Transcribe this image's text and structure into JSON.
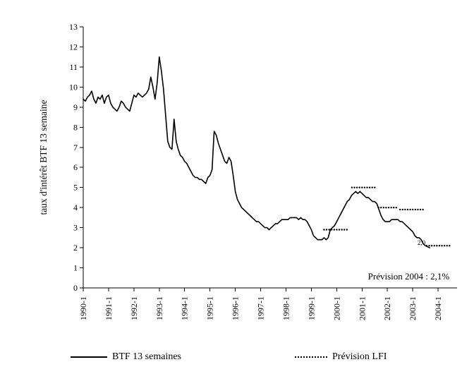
{
  "chart_data": {
    "type": "line",
    "title": "",
    "xlabel": "",
    "ylabel": "taux d'intérêt BTF 13 semaine",
    "ylim": [
      0,
      13
    ],
    "ytick_step": 1,
    "x_range": [
      1990,
      2004.75
    ],
    "x_tick_labels": [
      "1990-1",
      "1991-1",
      "1992-1",
      "1993-1",
      "1994-1",
      "1995-1",
      "1996-1",
      "1997-1",
      "1998-1",
      "1999-1",
      "2000-1",
      "2001-1",
      "2002-1",
      "2003-1",
      "2004-1"
    ],
    "grid": false,
    "legend_position": "bottom",
    "series": [
      {
        "name": "BTF 13 semaines",
        "style": "solid",
        "x_start_year": 1990,
        "x_step_months": 1,
        "values": [
          9.4,
          9.3,
          9.5,
          9.6,
          9.8,
          9.4,
          9.2,
          9.5,
          9.4,
          9.6,
          9.2,
          9.5,
          9.6,
          9.2,
          9.0,
          8.9,
          8.8,
          9.0,
          9.3,
          9.2,
          9.0,
          8.9,
          8.8,
          9.2,
          9.6,
          9.5,
          9.7,
          9.6,
          9.5,
          9.6,
          9.7,
          9.9,
          10.5,
          10.0,
          9.4,
          10.2,
          11.5,
          10.8,
          9.9,
          8.6,
          7.3,
          7.0,
          6.9,
          8.4,
          7.3,
          6.9,
          6.6,
          6.5,
          6.3,
          6.2,
          6.0,
          5.8,
          5.6,
          5.5,
          5.5,
          5.4,
          5.4,
          5.3,
          5.2,
          5.5,
          5.6,
          5.9,
          7.8,
          7.6,
          7.2,
          6.9,
          6.6,
          6.3,
          6.2,
          6.5,
          6.3,
          5.6,
          4.8,
          4.4,
          4.2,
          4.0,
          3.9,
          3.8,
          3.7,
          3.6,
          3.5,
          3.4,
          3.3,
          3.3,
          3.2,
          3.1,
          3.0,
          3.0,
          2.9,
          3.0,
          3.1,
          3.2,
          3.2,
          3.3,
          3.4,
          3.4,
          3.4,
          3.4,
          3.5,
          3.5,
          3.5,
          3.5,
          3.4,
          3.5,
          3.4,
          3.4,
          3.3,
          3.1,
          2.9,
          2.6,
          2.5,
          2.4,
          2.4,
          2.4,
          2.5,
          2.4,
          2.5,
          2.9,
          3.0,
          3.1,
          3.3,
          3.5,
          3.7,
          3.9,
          4.1,
          4.3,
          4.4,
          4.6,
          4.7,
          4.8,
          4.7,
          4.8,
          4.7,
          4.6,
          4.5,
          4.5,
          4.4,
          4.3,
          4.3,
          4.2,
          3.9,
          3.6,
          3.4,
          3.3,
          3.3,
          3.3,
          3.4,
          3.4,
          3.4,
          3.4,
          3.3,
          3.3,
          3.2,
          3.1,
          3.0,
          2.9,
          2.8,
          2.6,
          2.5,
          2.5,
          2.4,
          2.2,
          2.1,
          2.05,
          2.0
        ]
      }
    ],
    "forecast_series": {
      "name": "Prévision LFI",
      "style": "dotted",
      "segments": [
        {
          "label": "2000",
          "value": 2.9,
          "x_start": 1999.5,
          "x_end": 2000.5
        },
        {
          "label": "2001",
          "value": 5.0,
          "x_start": 2000.6,
          "x_end": 2001.6
        },
        {
          "label": "2002",
          "value": 4.0,
          "x_start": 2001.65,
          "x_end": 2002.45
        },
        {
          "label": "2003",
          "value": 3.9,
          "x_start": 2002.5,
          "x_end": 2003.5
        },
        {
          "label": "2004",
          "value": 2.1,
          "x_start": 2003.55,
          "x_end": 2004.55
        }
      ]
    },
    "annotations": [
      {
        "text": "Prévision 2004 : 2,1%",
        "x": 2004.45,
        "y": 0.42,
        "size": 13,
        "anchor": "end"
      },
      {
        "text": "2,0",
        "x": 2003.5,
        "y": 2.15,
        "size": 9,
        "anchor": "end"
      }
    ]
  },
  "legend": {
    "items": [
      {
        "label": "BTF 13 semaines",
        "marker": "solid-line"
      },
      {
        "label": "Prévision LFI",
        "marker": "dotted-line"
      }
    ]
  },
  "colors": {
    "line": "#000000",
    "background": "#ffffff",
    "axis": "#000000"
  }
}
